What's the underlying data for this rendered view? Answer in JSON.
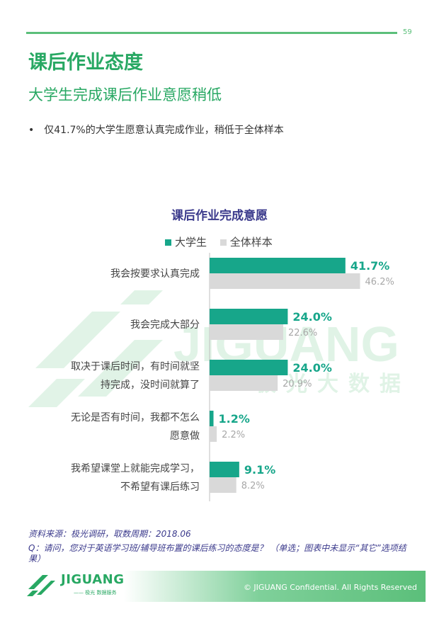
{
  "page": {
    "number": "59",
    "title": "课后作业态度",
    "subtitle": "大学生完成课后作业意愿稍低",
    "bullet": "仅41.7%的大学生愿意认真完成作业，稍低于全体样本"
  },
  "watermark": {
    "text": "JIGUANG",
    "sub": "极光大数据"
  },
  "colors": {
    "accent": "#28a863",
    "series1": "#17a68a",
    "series2": "#d9d9d9",
    "title": "#3b3a8c"
  },
  "chart_data": {
    "type": "bar",
    "orientation": "horizontal",
    "title": "课后作业完成意愿",
    "legend_position": "top",
    "grid": false,
    "xlim": [
      0,
      50
    ],
    "categories": [
      [
        "我会按要求认真完成"
      ],
      [
        "我会完成大部分"
      ],
      [
        "取决于课后时间，有时间就坚",
        "持完成，没时间就算了"
      ],
      [
        "无论是否有时间，我都不怎么",
        "愿意做"
      ],
      [
        "我希望课堂上就能完成学习，",
        "不希望有课后练习"
      ]
    ],
    "series": [
      {
        "name": "大学生",
        "values": [
          41.7,
          24.0,
          24.0,
          1.2,
          9.1
        ],
        "labels": [
          "41.7%",
          "24.0%",
          "24.0%",
          "1.2%",
          "9.1%"
        ]
      },
      {
        "name": "全体样本",
        "values": [
          46.2,
          22.6,
          20.9,
          2.2,
          8.2
        ],
        "labels": [
          "46.2%",
          "22.6%",
          "20.9%",
          "2.2%",
          "8.2%"
        ]
      }
    ]
  },
  "footnotes": {
    "source": "资料来源：极光调研，取数周期：2018.06",
    "question": "Q：请问，您对于英语学习班/辅导班布置的课后练习的态度是？ （单选；图表中未显示“其它”选项结果）"
  },
  "footer": {
    "logo_text": "JIGUANG",
    "logo_sub": "—— 极光 数据服务",
    "copyright": "© JIGUANG Confidential. All Rights Reserved"
  }
}
